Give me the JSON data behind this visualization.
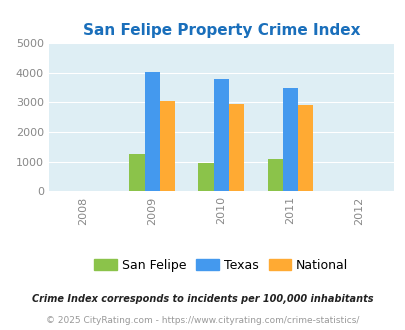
{
  "title": "San Felipe Property Crime Index",
  "title_color": "#1a6fbb",
  "years": [
    2008,
    2009,
    2010,
    2011,
    2012
  ],
  "bar_years": [
    2009,
    2010,
    2011
  ],
  "san_felipe": [
    1255,
    950,
    1080
  ],
  "texas": [
    4020,
    3800,
    3490
  ],
  "national": [
    3050,
    2940,
    2900
  ],
  "color_sf": "#8bc34a",
  "color_tx": "#4499ee",
  "color_nat": "#ffaa33",
  "ylim": [
    0,
    5000
  ],
  "yticks": [
    0,
    1000,
    2000,
    3000,
    4000,
    5000
  ],
  "plot_bg": "#deeef4",
  "legend_labels": [
    "San Felipe",
    "Texas",
    "National"
  ],
  "footnote1": "Crime Index corresponds to incidents per 100,000 inhabitants",
  "footnote2": "© 2025 CityRating.com - https://www.cityrating.com/crime-statistics/",
  "footnote1_color": "#222222",
  "footnote2_color": "#999999",
  "bar_width": 0.22
}
